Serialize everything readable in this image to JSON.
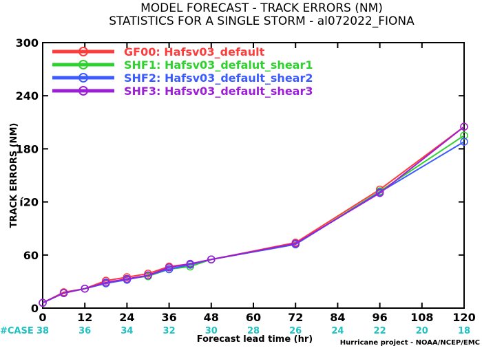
{
  "chart_data": {
    "type": "line",
    "title": "MODEL FORECAST - TRACK ERRORS (NM)",
    "subtitle": "STATISTICS FOR A SINGLE STORM - al072022_FIONA",
    "xlabel": "Forecast lead time (hr)",
    "ylabel": "TRACK ERRORS (NM)",
    "xlim": [
      0,
      120
    ],
    "ylim": [
      0,
      300
    ],
    "x_ticks": [
      0,
      12,
      24,
      36,
      48,
      60,
      72,
      84,
      96,
      108,
      120
    ],
    "y_ticks": [
      0,
      60,
      120,
      180,
      240,
      300
    ],
    "y_tick_labels": [
      "0",
      "60",
      "í20",
      "180",
      "240",
      "300"
    ],
    "grid": false,
    "legend_position": "top-left",
    "case_label": "#CASE",
    "cases": [
      38,
      36,
      34,
      32,
      30,
      28,
      26,
      24,
      22,
      20,
      18
    ],
    "credit": "Hurricane project - NOAA/NCEP/EMC",
    "series": [
      {
        "name": "GF00: Hafsv03_default",
        "color": "#ff3b3b",
        "x": [
          0,
          6,
          12,
          18,
          24,
          30,
          36,
          42,
          48,
          72,
          96,
          120
        ],
        "y": [
          6,
          18,
          22,
          31,
          35,
          39,
          47,
          50,
          55,
          74,
          134,
          205
        ]
      },
      {
        "name": "SHF1: Hafsv03_defalut_shear1",
        "color": "#2fd12f",
        "x": [
          0,
          6,
          12,
          18,
          24,
          30,
          36,
          42,
          48,
          72,
          96,
          120
        ],
        "y": [
          6,
          17,
          22,
          28,
          33,
          36,
          44,
          47,
          55,
          72,
          132,
          195
        ]
      },
      {
        "name": "SHF2: Hafsv03_default_shear2",
        "color": "#3b5bff",
        "x": [
          0,
          6,
          12,
          18,
          24,
          30,
          36,
          42,
          48,
          72,
          96,
          120
        ],
        "y": [
          6,
          17,
          22,
          28,
          32,
          37,
          44,
          49,
          55,
          72,
          131,
          188
        ]
      },
      {
        "name": "SHF3: Hafsv03_default_shear3",
        "color": "#9a1fd6",
        "x": [
          0,
          6,
          12,
          18,
          24,
          30,
          36,
          42,
          48,
          72,
          96,
          120
        ],
        "y": [
          6,
          17,
          22,
          29,
          33,
          37,
          46,
          50,
          55,
          73,
          130,
          205
        ]
      }
    ]
  }
}
